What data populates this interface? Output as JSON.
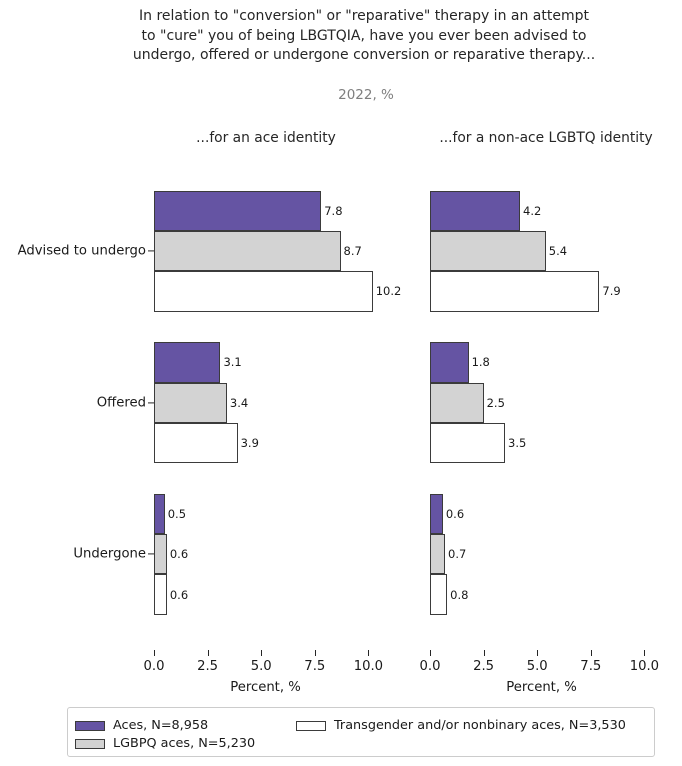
{
  "title": "In relation to \"conversion\" or \"reparative\" therapy in an attempt\nto \"cure\" you of being LBGTQIA, have you ever been advised to\nundergo, offered or undergone conversion or reparative therapy...",
  "subtitle": "2022, %",
  "chart_data": {
    "type": "bar",
    "orientation": "horizontal",
    "xlabel": "Percent, %",
    "xticks": [
      0.0,
      2.5,
      5.0,
      7.5,
      10.0
    ],
    "xlim": [
      0,
      10.4
    ],
    "grid": false,
    "legend_position": "bottom",
    "bar_edge_color": "#3b3b3b",
    "categories": [
      "Advised to undergo",
      "Offered",
      "Undergone"
    ],
    "panels": [
      {
        "title": "...for an ace identity",
        "series": [
          {
            "name": "Aces, N=8,958",
            "color": "#6554A3",
            "values": [
              7.8,
              3.1,
              0.5
            ]
          },
          {
            "name": "LGBPQ aces, N=5,230",
            "color": "#D3D3D3",
            "values": [
              8.7,
              3.4,
              0.6
            ]
          },
          {
            "name": "Transgender and/or nonbinary aces, N=3,530",
            "color": "#FFFFFF",
            "values": [
              10.2,
              3.9,
              0.6
            ]
          }
        ]
      },
      {
        "title": "...for a non-ace LGBTQ identity",
        "series": [
          {
            "name": "Aces, N=8,958",
            "color": "#6554A3",
            "values": [
              4.2,
              1.8,
              0.6
            ]
          },
          {
            "name": "LGBPQ aces, N=5,230",
            "color": "#D3D3D3",
            "values": [
              5.4,
              2.5,
              0.7
            ]
          },
          {
            "name": "Transgender and/or nonbinary aces, N=3,530",
            "color": "#FFFFFF",
            "values": [
              7.9,
              3.5,
              0.8
            ]
          }
        ]
      }
    ],
    "legend": [
      {
        "label": "Aces, N=8,958",
        "color": "#6554A3"
      },
      {
        "label": "LGBPQ aces, N=5,230",
        "color": "#D3D3D3"
      },
      {
        "label": "Transgender and/or nonbinary aces, N=3,530",
        "color": "#FFFFFF"
      }
    ]
  }
}
